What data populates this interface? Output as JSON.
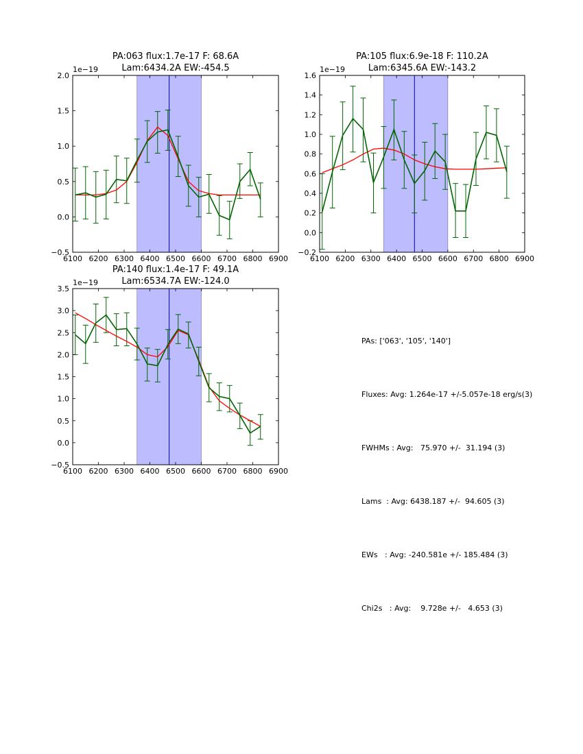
{
  "chart_data": [
    {
      "type": "line",
      "title": [
        "PA:063 flux:1.7e-17 F: 68.6A",
        "Lam:6434.2A EW:-454.5"
      ],
      "offset_label": "1e−19",
      "xlim": [
        6100,
        6900
      ],
      "ylim": [
        -0.5,
        2.0
      ],
      "xticks": [
        6100,
        6200,
        6300,
        6400,
        6500,
        6600,
        6700,
        6800,
        6900
      ],
      "yticks": [
        -0.5,
        0.0,
        0.5,
        1.0,
        1.5,
        2.0
      ],
      "ytick_labels": [
        "−0.5",
        "0.0",
        "0.5",
        "1.0",
        "1.5",
        "2.0"
      ],
      "band": [
        6350,
        6600
      ],
      "vline": 6475,
      "series": [
        {
          "name": "data",
          "color": "#006400",
          "x": [
            6110,
            6150,
            6190,
            6230,
            6270,
            6310,
            6350,
            6390,
            6430,
            6470,
            6510,
            6550,
            6590,
            6630,
            6670,
            6710,
            6750,
            6790,
            6830
          ],
          "values": [
            0.31,
            0.34,
            0.28,
            0.32,
            0.53,
            0.51,
            0.8,
            1.07,
            1.2,
            1.23,
            0.85,
            0.44,
            0.28,
            0.32,
            0.02,
            -0.04,
            0.5,
            0.67,
            0.25
          ],
          "err_low": [
            -0.06,
            -0.03,
            -0.09,
            -0.03,
            0.2,
            0.19,
            0.49,
            0.77,
            0.9,
            0.94,
            0.57,
            0.15,
            0.0,
            0.05,
            -0.26,
            -0.31,
            0.26,
            0.44,
            0.0
          ],
          "err_high": [
            0.69,
            0.71,
            0.64,
            0.66,
            0.86,
            0.83,
            1.1,
            1.36,
            1.49,
            1.51,
            1.14,
            0.73,
            0.56,
            0.6,
            0.3,
            0.22,
            0.75,
            0.91,
            0.48
          ]
        },
        {
          "name": "fit",
          "color": "#ff0000",
          "x": [
            6110,
            6150,
            6190,
            6230,
            6270,
            6310,
            6350,
            6390,
            6430,
            6470,
            6510,
            6550,
            6590,
            6630,
            6670,
            6710,
            6750,
            6790,
            6830
          ],
          "values": [
            0.31,
            0.31,
            0.31,
            0.33,
            0.38,
            0.5,
            0.77,
            1.08,
            1.27,
            1.15,
            0.82,
            0.5,
            0.37,
            0.33,
            0.31,
            0.31,
            0.31,
            0.31,
            0.31
          ]
        }
      ]
    },
    {
      "type": "line",
      "title": [
        "PA:105 flux:6.9e-18 F: 110.2A",
        "Lam:6345.6A EW:-143.2"
      ],
      "offset_label": "1e−19",
      "xlim": [
        6100,
        6900
      ],
      "ylim": [
        -0.2,
        1.6
      ],
      "xticks": [
        6100,
        6200,
        6300,
        6400,
        6500,
        6600,
        6700,
        6800,
        6900
      ],
      "yticks": [
        -0.2,
        0.0,
        0.2,
        0.4,
        0.6,
        0.8,
        1.0,
        1.2,
        1.4,
        1.6
      ],
      "ytick_labels": [
        "−0.2",
        "0.0",
        "0.2",
        "0.4",
        "0.6",
        "0.8",
        "1.0",
        "1.2",
        "1.4",
        "1.6"
      ],
      "band": [
        6350,
        6600
      ],
      "vline": 6470,
      "series": [
        {
          "name": "data",
          "color": "#006400",
          "x": [
            6110,
            6150,
            6190,
            6230,
            6270,
            6310,
            6350,
            6390,
            6430,
            6470,
            6510,
            6550,
            6590,
            6630,
            6670,
            6710,
            6750,
            6790,
            6830
          ],
          "values": [
            0.21,
            0.62,
            0.99,
            1.16,
            1.05,
            0.51,
            0.77,
            1.05,
            0.74,
            0.5,
            0.63,
            0.83,
            0.72,
            0.22,
            0.22,
            0.75,
            1.02,
            0.99,
            0.62
          ],
          "err_low": [
            -0.17,
            0.25,
            0.64,
            0.82,
            0.72,
            0.2,
            0.45,
            0.74,
            0.45,
            0.2,
            0.33,
            0.55,
            0.44,
            -0.05,
            -0.05,
            0.48,
            0.75,
            0.72,
            0.35
          ],
          "err_high": [
            0.6,
            0.98,
            1.33,
            1.49,
            1.37,
            0.81,
            1.08,
            1.35,
            1.03,
            0.79,
            0.92,
            1.11,
            1.0,
            0.5,
            0.49,
            1.02,
            1.29,
            1.26,
            0.88
          ]
        },
        {
          "name": "fit",
          "color": "#ff0000",
          "x": [
            6110,
            6150,
            6190,
            6230,
            6270,
            6310,
            6350,
            6390,
            6430,
            6470,
            6510,
            6550,
            6590,
            6630,
            6670,
            6710,
            6750,
            6790,
            6830
          ],
          "values": [
            0.61,
            0.65,
            0.69,
            0.74,
            0.8,
            0.85,
            0.86,
            0.84,
            0.8,
            0.74,
            0.7,
            0.67,
            0.65,
            0.645,
            0.645,
            0.645,
            0.65,
            0.655,
            0.66
          ]
        }
      ]
    },
    {
      "type": "line",
      "title": [
        "PA:140 flux:1.4e-17 F: 49.1A",
        "Lam:6534.7A EW:-124.0"
      ],
      "offset_label": "1e−19",
      "xlim": [
        6100,
        6900
      ],
      "ylim": [
        -0.5,
        3.5
      ],
      "xticks": [
        6100,
        6200,
        6300,
        6400,
        6500,
        6600,
        6700,
        6800,
        6900
      ],
      "yticks": [
        -0.5,
        0.0,
        0.5,
        1.0,
        1.5,
        2.0,
        2.5,
        3.0,
        3.5
      ],
      "ytick_labels": [
        "−0.5",
        "0.0",
        "0.5",
        "1.0",
        "1.5",
        "2.0",
        "2.5",
        "3.0",
        "3.5"
      ],
      "band": [
        6350,
        6600
      ],
      "vline": 6475,
      "series": [
        {
          "name": "data",
          "color": "#006400",
          "x": [
            6110,
            6150,
            6190,
            6230,
            6270,
            6310,
            6350,
            6390,
            6430,
            6470,
            6510,
            6550,
            6590,
            6630,
            6670,
            6710,
            6750,
            6790,
            6830
          ],
          "values": [
            2.45,
            2.25,
            2.72,
            2.9,
            2.57,
            2.59,
            2.24,
            1.79,
            1.75,
            2.23,
            2.58,
            2.47,
            1.85,
            1.25,
            1.05,
            1.0,
            0.62,
            0.22,
            0.37
          ],
          "err_low": [
            2.0,
            1.8,
            2.28,
            2.5,
            2.2,
            2.2,
            1.88,
            1.4,
            1.38,
            1.9,
            2.25,
            2.15,
            1.52,
            0.93,
            0.73,
            0.7,
            0.32,
            -0.06,
            0.08
          ],
          "err_high": [
            2.9,
            2.67,
            3.15,
            3.3,
            2.93,
            2.95,
            2.6,
            2.15,
            2.12,
            2.57,
            2.91,
            2.74,
            2.17,
            1.57,
            1.36,
            1.3,
            0.9,
            0.5,
            0.64
          ]
        },
        {
          "name": "fit",
          "color": "#ff0000",
          "x": [
            6110,
            6150,
            6190,
            6230,
            6270,
            6310,
            6350,
            6390,
            6430,
            6470,
            6510,
            6550,
            6590,
            6630,
            6670,
            6710,
            6750,
            6790,
            6830
          ],
          "values": [
            2.95,
            2.82,
            2.68,
            2.55,
            2.42,
            2.3,
            2.17,
            2.0,
            1.95,
            2.18,
            2.55,
            2.45,
            1.88,
            1.27,
            0.95,
            0.78,
            0.63,
            0.5,
            0.37
          ]
        }
      ]
    }
  ],
  "summary": {
    "pas": "PAs: ['063', '105', '140']",
    "fluxes": "Fluxes: Avg: 1.264e-17 +/-5.057e-18 erg/s(3)",
    "fwhms": "FWHMs : Avg:   75.970 +/-  31.194 (3)",
    "lams": "Lams  : Avg: 6438.187 +/-  94.605 (3)",
    "ews": "EWs   : Avg: -240.581e +/- 185.484 (3)",
    "chi2s": "Chi2s   : Avg:    9.728e +/-   4.653 (3)"
  },
  "colors": {
    "band": "#bcbcff",
    "band_edge": "#6a6aaa",
    "vline": "#0000aa"
  }
}
